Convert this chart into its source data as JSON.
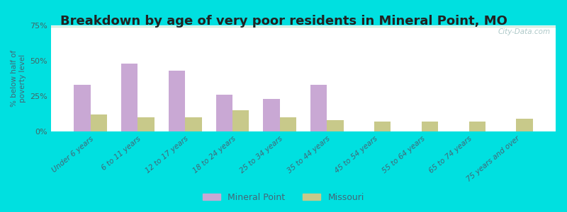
{
  "title": "Breakdown by age of very poor residents in Mineral Point, MO",
  "ylabel": "% below half of\npoverty level",
  "categories": [
    "Under 6 years",
    "6 to 11 years",
    "12 to 17 years",
    "18 to 24 years",
    "25 to 34 years",
    "35 to 44 years",
    "45 to 54 years",
    "55 to 64 years",
    "65 to 74 years",
    "75 years and over"
  ],
  "mineral_point": [
    33.0,
    48.0,
    43.0,
    26.0,
    23.0,
    33.0,
    0.0,
    0.0,
    0.0,
    0.0
  ],
  "missouri": [
    12.0,
    10.0,
    10.0,
    15.0,
    10.0,
    8.0,
    7.0,
    7.0,
    7.0,
    9.0
  ],
  "mineral_point_color": "#c9a8d4",
  "missouri_color": "#c8c98a",
  "background_outer": "#00e0e0",
  "background_plot_top": "#f0f4ec",
  "background_plot_bottom": "#cce8d8",
  "ylim": [
    0,
    75
  ],
  "yticks": [
    0,
    25,
    50,
    75
  ],
  "ytick_labels": [
    "0%",
    "25%",
    "50%",
    "75%"
  ],
  "bar_width": 0.35,
  "title_fontsize": 13,
  "legend_labels": [
    "Mineral Point",
    "Missouri"
  ],
  "watermark": "City-Data.com"
}
